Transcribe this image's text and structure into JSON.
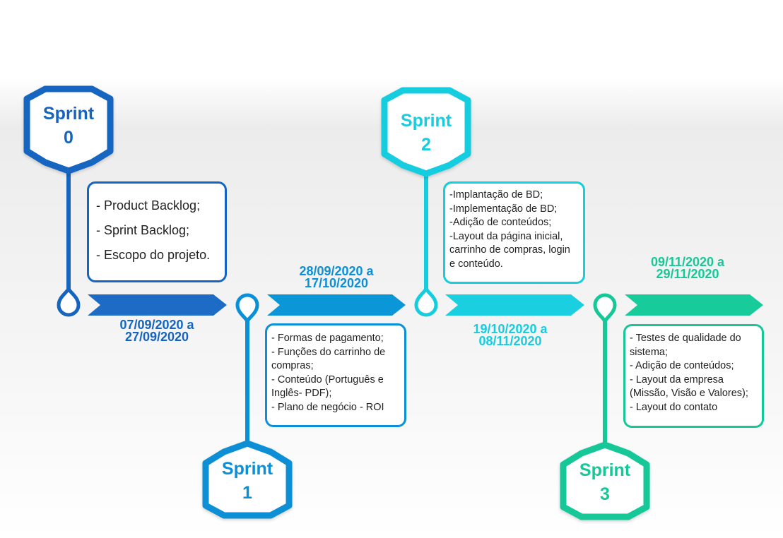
{
  "sprints": [
    {
      "title": "Sprint",
      "number": "0",
      "color": "#1565c0",
      "dates": [
        "07/09/2020 a",
        "27/09/2020"
      ],
      "items": [
        "- Product Backlog;",
        "- Sprint Backlog;",
        "- Escopo do projeto."
      ]
    },
    {
      "title": "Sprint",
      "number": "1",
      "color": "#0b8fd6",
      "dates": [
        "28/09/2020 a",
        "17/10/2020"
      ],
      "items": [
        "- Formas de pagamento;",
        "- Funções do carrinho de",
        "compras;",
        "- Conteúdo (Português e",
        "Inglês- PDF);",
        "- Plano de negócio - ROI"
      ]
    },
    {
      "title": "Sprint",
      "number": "2",
      "color": "#16cde0",
      "dates": [
        "19/10/2020 a",
        "08/11/2020"
      ],
      "items": [
        "-Implantação de BD;",
        "-Implementação de BD;",
        "-Adição de conteúdos;",
        "-Layout da página inicial,",
        "carrinho de compras, login",
        "e conteúdo."
      ]
    },
    {
      "title": "Sprint",
      "number": "3",
      "color": "#16c898",
      "dates": [
        "09/11/2020 a",
        "29/11/2020"
      ],
      "items": [
        "- Testes de qualidade do",
        "sistema;",
        "- Adição de conteúdos;",
        "- Layout da empresa",
        "(Missão, Visão e Valores);",
        "- Layout do contato"
      ]
    }
  ]
}
